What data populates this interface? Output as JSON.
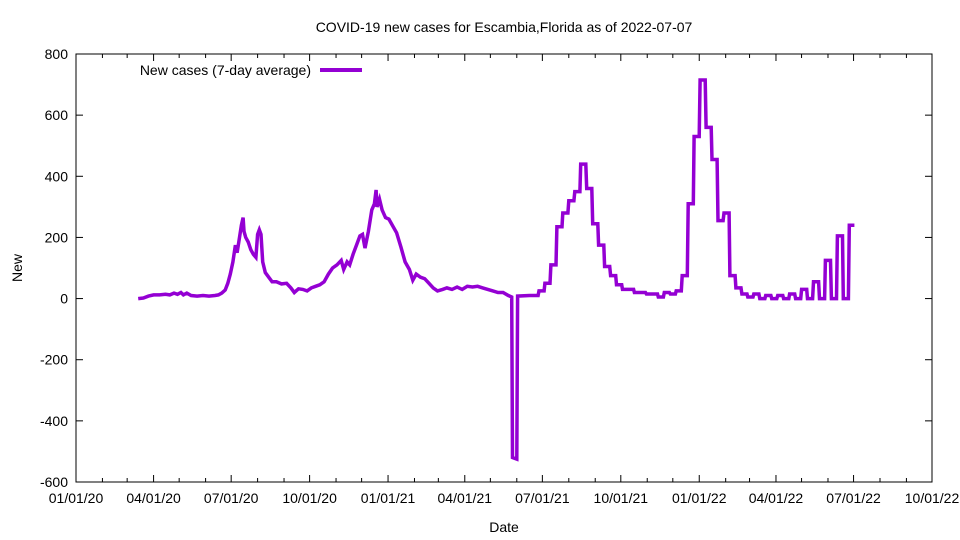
{
  "chart_data": {
    "type": "line",
    "title": "COVID-19 new cases for Escambia,Florida as of 2022-07-07",
    "xlabel": "Date",
    "ylabel": "New",
    "xlim": [
      "2020-01-01",
      "2022-10-01"
    ],
    "ylim": [
      -600,
      800
    ],
    "x_ticks": [
      "01/01/20",
      "04/01/20",
      "07/01/20",
      "10/01/20",
      "01/01/21",
      "04/01/21",
      "07/01/21",
      "10/01/21",
      "01/01/22",
      "04/01/22",
      "07/01/22",
      "10/01/22"
    ],
    "x_tick_dates": [
      "2020-01-01",
      "2020-04-01",
      "2020-07-01",
      "2020-10-01",
      "2021-01-01",
      "2021-04-01",
      "2021-07-01",
      "2021-10-01",
      "2022-01-01",
      "2022-04-01",
      "2022-07-01",
      "2022-10-01"
    ],
    "y_ticks": [
      -600,
      -400,
      -200,
      0,
      200,
      400,
      600,
      800
    ],
    "legend": "top-left",
    "grid": false,
    "series": [
      {
        "name": "New cases (7-day average)",
        "color": "#9400d3",
        "points": [
          [
            "2020-03-14",
            0
          ],
          [
            "2020-03-20",
            2
          ],
          [
            "2020-03-26",
            8
          ],
          [
            "2020-04-01",
            12
          ],
          [
            "2020-04-08",
            12
          ],
          [
            "2020-04-15",
            14
          ],
          [
            "2020-04-20",
            12
          ],
          [
            "2020-04-25",
            18
          ],
          [
            "2020-04-29",
            14
          ],
          [
            "2020-05-03",
            20
          ],
          [
            "2020-05-06",
            12
          ],
          [
            "2020-05-10",
            18
          ],
          [
            "2020-05-15",
            10
          ],
          [
            "2020-05-22",
            8
          ],
          [
            "2020-05-29",
            10
          ],
          [
            "2020-06-05",
            8
          ],
          [
            "2020-06-12",
            10
          ],
          [
            "2020-06-16",
            12
          ],
          [
            "2020-06-20",
            18
          ],
          [
            "2020-06-24",
            28
          ],
          [
            "2020-06-27",
            50
          ],
          [
            "2020-06-30",
            80
          ],
          [
            "2020-07-03",
            120
          ],
          [
            "2020-07-06",
            175
          ],
          [
            "2020-07-08",
            150
          ],
          [
            "2020-07-10",
            185
          ],
          [
            "2020-07-13",
            240
          ],
          [
            "2020-07-15",
            265
          ],
          [
            "2020-07-16",
            220
          ],
          [
            "2020-07-18",
            200
          ],
          [
            "2020-07-21",
            185
          ],
          [
            "2020-07-24",
            160
          ],
          [
            "2020-07-27",
            145
          ],
          [
            "2020-07-30",
            135
          ],
          [
            "2020-08-01",
            210
          ],
          [
            "2020-08-03",
            225
          ],
          [
            "2020-08-05",
            210
          ],
          [
            "2020-08-07",
            120
          ],
          [
            "2020-08-10",
            85
          ],
          [
            "2020-08-14",
            70
          ],
          [
            "2020-08-18",
            55
          ],
          [
            "2020-08-23",
            55
          ],
          [
            "2020-08-29",
            48
          ],
          [
            "2020-09-04",
            50
          ],
          [
            "2020-09-09",
            35
          ],
          [
            "2020-09-13",
            20
          ],
          [
            "2020-09-18",
            32
          ],
          [
            "2020-09-23",
            30
          ],
          [
            "2020-09-28",
            25
          ],
          [
            "2020-10-03",
            35
          ],
          [
            "2020-10-08",
            40
          ],
          [
            "2020-10-13",
            45
          ],
          [
            "2020-10-18",
            55
          ],
          [
            "2020-10-23",
            80
          ],
          [
            "2020-10-28",
            100
          ],
          [
            "2020-11-02",
            110
          ],
          [
            "2020-11-07",
            125
          ],
          [
            "2020-11-10",
            95
          ],
          [
            "2020-11-14",
            120
          ],
          [
            "2020-11-17",
            110
          ],
          [
            "2020-11-21",
            145
          ],
          [
            "2020-11-25",
            175
          ],
          [
            "2020-11-29",
            205
          ],
          [
            "2020-12-02",
            210
          ],
          [
            "2020-12-05",
            165
          ],
          [
            "2020-12-09",
            220
          ],
          [
            "2020-12-13",
            290
          ],
          [
            "2020-12-16",
            310
          ],
          [
            "2020-12-18",
            355
          ],
          [
            "2020-12-19",
            300
          ],
          [
            "2020-12-22",
            325
          ],
          [
            "2020-12-25",
            290
          ],
          [
            "2020-12-29",
            265
          ],
          [
            "2021-01-02",
            260
          ],
          [
            "2021-01-06",
            240
          ],
          [
            "2021-01-11",
            215
          ],
          [
            "2021-01-16",
            170
          ],
          [
            "2021-01-21",
            120
          ],
          [
            "2021-01-26",
            95
          ],
          [
            "2021-01-30",
            60
          ],
          [
            "2021-02-03",
            80
          ],
          [
            "2021-02-08",
            70
          ],
          [
            "2021-02-13",
            65
          ],
          [
            "2021-02-18",
            50
          ],
          [
            "2021-02-23",
            35
          ],
          [
            "2021-02-28",
            25
          ],
          [
            "2021-03-06",
            30
          ],
          [
            "2021-03-11",
            35
          ],
          [
            "2021-03-17",
            30
          ],
          [
            "2021-03-23",
            38
          ],
          [
            "2021-03-29",
            30
          ],
          [
            "2021-04-04",
            40
          ],
          [
            "2021-04-10",
            38
          ],
          [
            "2021-04-16",
            40
          ],
          [
            "2021-04-22",
            35
          ],
          [
            "2021-04-28",
            30
          ],
          [
            "2021-05-04",
            25
          ],
          [
            "2021-05-10",
            20
          ],
          [
            "2021-05-16",
            20
          ],
          [
            "2021-05-22",
            10
          ],
          [
            "2021-05-26",
            5
          ],
          [
            "2021-05-27",
            -520
          ],
          [
            "2021-06-01",
            -525
          ],
          [
            "2021-06-02",
            8
          ],
          [
            "2021-06-16",
            10
          ],
          [
            "2021-06-26",
            10
          ],
          [
            "2021-06-27",
            25
          ],
          [
            "2021-07-03",
            25
          ],
          [
            "2021-07-04",
            50
          ],
          [
            "2021-07-10",
            50
          ],
          [
            "2021-07-11",
            110
          ],
          [
            "2021-07-17",
            110
          ],
          [
            "2021-07-18",
            235
          ],
          [
            "2021-07-24",
            235
          ],
          [
            "2021-07-25",
            280
          ],
          [
            "2021-07-31",
            280
          ],
          [
            "2021-08-01",
            320
          ],
          [
            "2021-08-07",
            320
          ],
          [
            "2021-08-08",
            350
          ],
          [
            "2021-08-14",
            350
          ],
          [
            "2021-08-15",
            440
          ],
          [
            "2021-08-21",
            440
          ],
          [
            "2021-08-22",
            360
          ],
          [
            "2021-08-28",
            360
          ],
          [
            "2021-08-29",
            245
          ],
          [
            "2021-09-04",
            245
          ],
          [
            "2021-09-05",
            175
          ],
          [
            "2021-09-11",
            175
          ],
          [
            "2021-09-12",
            105
          ],
          [
            "2021-09-18",
            105
          ],
          [
            "2021-09-19",
            75
          ],
          [
            "2021-09-25",
            75
          ],
          [
            "2021-09-26",
            45
          ],
          [
            "2021-10-02",
            45
          ],
          [
            "2021-10-03",
            30
          ],
          [
            "2021-10-16",
            30
          ],
          [
            "2021-10-17",
            20
          ],
          [
            "2021-10-30",
            20
          ],
          [
            "2021-10-31",
            15
          ],
          [
            "2021-11-13",
            15
          ],
          [
            "2021-11-14",
            5
          ],
          [
            "2021-11-20",
            5
          ],
          [
            "2021-11-21",
            20
          ],
          [
            "2021-11-27",
            20
          ],
          [
            "2021-11-28",
            15
          ],
          [
            "2021-12-04",
            15
          ],
          [
            "2021-12-05",
            25
          ],
          [
            "2021-12-11",
            25
          ],
          [
            "2021-12-12",
            75
          ],
          [
            "2021-12-18",
            75
          ],
          [
            "2021-12-19",
            310
          ],
          [
            "2021-12-25",
            310
          ],
          [
            "2021-12-26",
            530
          ],
          [
            "2022-01-01",
            530
          ],
          [
            "2022-01-02",
            715
          ],
          [
            "2022-01-08",
            715
          ],
          [
            "2022-01-09",
            560
          ],
          [
            "2022-01-15",
            560
          ],
          [
            "2022-01-16",
            455
          ],
          [
            "2022-01-22",
            455
          ],
          [
            "2022-01-23",
            255
          ],
          [
            "2022-01-29",
            255
          ],
          [
            "2022-01-30",
            280
          ],
          [
            "2022-02-05",
            280
          ],
          [
            "2022-02-06",
            75
          ],
          [
            "2022-02-12",
            75
          ],
          [
            "2022-02-13",
            35
          ],
          [
            "2022-02-19",
            35
          ],
          [
            "2022-02-20",
            15
          ],
          [
            "2022-02-26",
            15
          ],
          [
            "2022-02-27",
            5
          ],
          [
            "2022-03-05",
            5
          ],
          [
            "2022-03-06",
            15
          ],
          [
            "2022-03-12",
            15
          ],
          [
            "2022-03-13",
            0
          ],
          [
            "2022-03-19",
            0
          ],
          [
            "2022-03-20",
            10
          ],
          [
            "2022-03-26",
            10
          ],
          [
            "2022-03-27",
            0
          ],
          [
            "2022-04-02",
            0
          ],
          [
            "2022-04-03",
            10
          ],
          [
            "2022-04-09",
            10
          ],
          [
            "2022-04-10",
            0
          ],
          [
            "2022-04-16",
            0
          ],
          [
            "2022-04-17",
            15
          ],
          [
            "2022-04-23",
            15
          ],
          [
            "2022-04-24",
            0
          ],
          [
            "2022-04-30",
            0
          ],
          [
            "2022-05-01",
            30
          ],
          [
            "2022-05-07",
            30
          ],
          [
            "2022-05-08",
            0
          ],
          [
            "2022-05-14",
            0
          ],
          [
            "2022-05-15",
            55
          ],
          [
            "2022-05-21",
            55
          ],
          [
            "2022-05-22",
            0
          ],
          [
            "2022-05-28",
            0
          ],
          [
            "2022-05-29",
            125
          ],
          [
            "2022-06-04",
            125
          ],
          [
            "2022-06-05",
            0
          ],
          [
            "2022-06-11",
            0
          ],
          [
            "2022-06-12",
            205
          ],
          [
            "2022-06-18",
            205
          ],
          [
            "2022-06-19",
            0
          ],
          [
            "2022-06-25",
            0
          ],
          [
            "2022-06-26",
            240
          ],
          [
            "2022-07-02",
            240
          ]
        ]
      }
    ]
  }
}
